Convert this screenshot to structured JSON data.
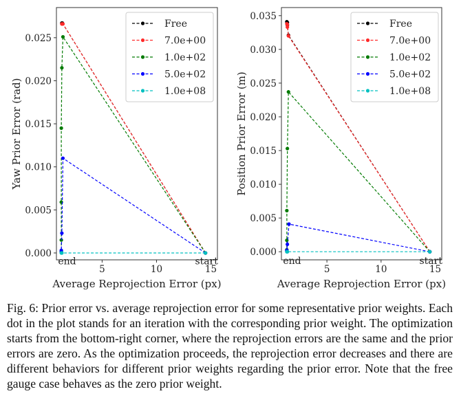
{
  "colors": {
    "Free": "#000000",
    "7.0e+00": "#ff2a2a",
    "1.0e+02": "#007a00",
    "5.0e+02": "#0000ff",
    "1.0e+08": "#00c0c0"
  },
  "chart_data": [
    {
      "type": "line",
      "xlabel": "Average Reprojection Error (px)",
      "ylabel": "Yaw Prior Error (rad)",
      "xlim": [
        0.8,
        15.6
      ],
      "ylim": [
        -0.0008,
        0.0285
      ],
      "xticks": [
        5,
        10,
        15
      ],
      "yticks": [
        0.0,
        0.005,
        0.01,
        0.015,
        0.02,
        0.025
      ],
      "ytick_labels": [
        "0.000",
        "0.005",
        "0.010",
        "0.015",
        "0.020",
        "0.025"
      ],
      "legend_position": "top-right",
      "grid": false,
      "annotations": [
        {
          "text": "end",
          "x": 0.95,
          "y": -0.0002,
          "anchor": "start"
        },
        {
          "text": "start",
          "x": 14.6,
          "y": -0.0002,
          "anchor": "middle"
        }
      ],
      "series": [
        {
          "name": "Free",
          "x": [
            14.5,
            1.35,
            1.3,
            1.3
          ],
          "y": [
            0.0,
            0.0267,
            0.0267,
            0.0267
          ]
        },
        {
          "name": "7.0e+00",
          "x": [
            14.5,
            1.4,
            1.35,
            1.3,
            1.3
          ],
          "y": [
            0.0,
            0.0266,
            0.0266,
            0.0266,
            0.0266
          ]
        },
        {
          "name": "1.0e+02",
          "x": [
            14.5,
            1.4,
            1.3,
            1.25,
            1.25,
            1.25,
            1.25
          ],
          "y": [
            0.0,
            0.0251,
            0.0215,
            0.0145,
            0.0059,
            0.0015,
            0.0002
          ]
        },
        {
          "name": "5.0e+02",
          "x": [
            14.5,
            1.4,
            1.3,
            1.25,
            1.25
          ],
          "y": [
            0.0,
            0.011,
            0.0023,
            0.0003,
            0.0001
          ]
        },
        {
          "name": "1.0e+08",
          "x": [
            14.5,
            1.3,
            1.25
          ],
          "y": [
            0.0,
            0.0,
            0.0
          ]
        }
      ]
    },
    {
      "type": "line",
      "xlabel": "Average Reprojection Error (px)",
      "ylabel": "Position Prior Error (m)",
      "xlim": [
        0.8,
        15.6
      ],
      "ylim": [
        -0.0012,
        0.0362
      ],
      "xticks": [
        5,
        10,
        15
      ],
      "yticks": [
        0.0,
        0.005,
        0.01,
        0.015,
        0.02,
        0.025,
        0.03,
        0.035
      ],
      "ytick_labels": [
        "0.000",
        "0.005",
        "0.010",
        "0.015",
        "0.020",
        "0.025",
        "0.030",
        "0.035"
      ],
      "legend_position": "top-right",
      "grid": false,
      "annotations": [
        {
          "text": "end",
          "x": 0.95,
          "y": -0.0004,
          "anchor": "start"
        },
        {
          "text": "start",
          "x": 14.6,
          "y": -0.0004,
          "anchor": "middle"
        }
      ],
      "series": [
        {
          "name": "Free",
          "x": [
            14.5,
            1.45,
            1.35,
            1.35,
            1.3
          ],
          "y": [
            0.0,
            0.0321,
            0.0336,
            0.034,
            0.0341
          ]
        },
        {
          "name": "7.0e+00",
          "x": [
            14.5,
            1.45,
            1.35,
            1.35,
            1.3
          ],
          "y": [
            0.0,
            0.032,
            0.0333,
            0.0337,
            0.0338
          ]
        },
        {
          "name": "1.0e+02",
          "x": [
            14.5,
            1.45,
            1.35,
            1.3,
            1.3,
            1.3
          ],
          "y": [
            0.0,
            0.0237,
            0.0153,
            0.0061,
            0.0017,
            0.0003
          ]
        },
        {
          "name": "5.0e+02",
          "x": [
            14.5,
            1.5,
            1.35,
            1.3,
            1.3
          ],
          "y": [
            0.0,
            0.0041,
            0.0011,
            0.0002,
            0.0001
          ]
        },
        {
          "name": "1.0e+08",
          "x": [
            14.5,
            1.35,
            1.3
          ],
          "y": [
            0.0,
            0.0,
            0.0
          ]
        }
      ]
    }
  ],
  "caption": "Fig. 6: Prior error vs. average reprojection error for some representative prior weights. Each dot in the plot stands for an iteration with the corresponding prior weight. The optimization starts from the bottom-right corner, where the reprojection errors are the same and the prior errors are zero. As the optimization proceeds, the reprojection error decreases and there are different behaviors for different prior weights regarding the prior error. Note that the free gauge case behaves as the zero prior weight."
}
